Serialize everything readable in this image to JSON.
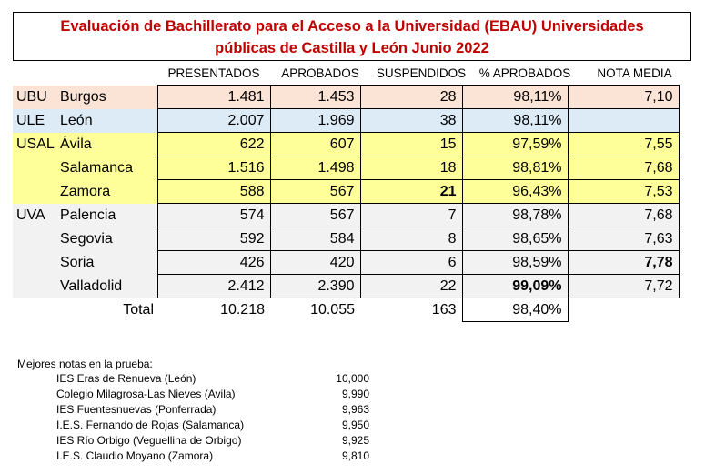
{
  "title": {
    "line1": "Evaluación de Bachillerato para el Acceso a la Universidad (EBAU) Universidades",
    "line2": "públicas de Castilla y León Junio 2022"
  },
  "headers": [
    "PRESENTADOS",
    "APROBADOS",
    "SUSPENDIDOS",
    "% APROBADOS",
    "NOTA MEDIA"
  ],
  "rows": [
    {
      "univ": "UBU",
      "city": "Burgos",
      "presentados": "1.481",
      "aprobados": "1.453",
      "suspendidos": "28",
      "pct": "98,11%",
      "nota": "7,10"
    },
    {
      "univ": "ULE",
      "city": "León",
      "presentados": "2.007",
      "aprobados": "1.969",
      "suspendidos": "38",
      "pct": "98,11%",
      "nota": ""
    },
    {
      "univ": "USAL",
      "city": "Ávila",
      "presentados": "622",
      "aprobados": "607",
      "suspendidos": "15",
      "pct": "97,59%",
      "nota": "7,55"
    },
    {
      "univ": "",
      "city": "Salamanca",
      "presentados": "1.516",
      "aprobados": "1.498",
      "suspendidos": "18",
      "pct": "98,81%",
      "nota": "7,68"
    },
    {
      "univ": "",
      "city": "Zamora",
      "presentados": "588",
      "aprobados": "567",
      "suspendidos": "21",
      "pct": "96,43%",
      "nota": "7,53"
    },
    {
      "univ": "UVA",
      "city": "Palencia",
      "presentados": "574",
      "aprobados": "567",
      "suspendidos": "7",
      "pct": "98,78%",
      "nota": "7,68"
    },
    {
      "univ": "",
      "city": "Segovia",
      "presentados": "592",
      "aprobados": "584",
      "suspendidos": "8",
      "pct": "98,65%",
      "nota": "7,63"
    },
    {
      "univ": "",
      "city": "Soria",
      "presentados": "426",
      "aprobados": "420",
      "suspendidos": "6",
      "pct": "98,59%",
      "nota": "7,78"
    },
    {
      "univ": "",
      "city": "Valladolid",
      "presentados": "2.412",
      "aprobados": "2.390",
      "suspendidos": "22",
      "pct": "99,09%",
      "nota": "7,72"
    }
  ],
  "total": {
    "label": "Total",
    "presentados": "10.218",
    "aprobados": "10.055",
    "suspendidos": "163",
    "pct": "98,40%"
  },
  "best": {
    "title": "Mejores notas en la prueba:",
    "items": [
      {
        "name": "IES Eras de Renueva (León)",
        "score": "10,000"
      },
      {
        "name": "Colegio Milagrosa-Las Nieves (Avila)",
        "score": "9,990"
      },
      {
        "name": "IES Fuentesnuevas (Ponferrada)",
        "score": "9,963"
      },
      {
        "name": "I.E.S. Fernando de Rojas (Salamanca)",
        "score": "9,950"
      },
      {
        "name": "IES Río Orbigo (Veguellina de Orbigo)",
        "score": "9,925"
      },
      {
        "name": "I.E.S. Claudio Moyano (Zamora)",
        "score": "9,810"
      }
    ]
  },
  "colors": {
    "ubu": "#fbe4d6",
    "ule": "#ddebf7",
    "usal": "#ffff99",
    "uva": "#f2f2f2",
    "title": "#c00000"
  }
}
